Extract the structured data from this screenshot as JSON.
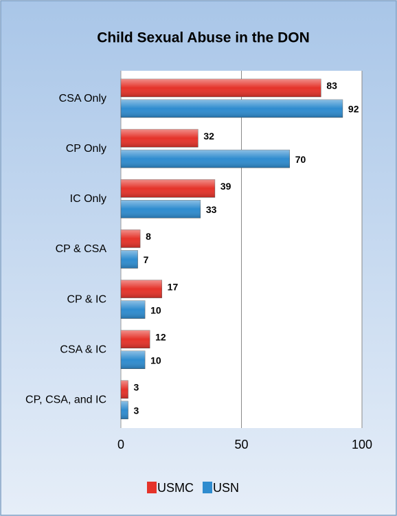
{
  "chart_data": {
    "type": "bar",
    "orientation": "horizontal",
    "title": "Child Sexual Abuse in the DON",
    "categories": [
      "CSA Only",
      "CP Only",
      "IC Only",
      "CP & CSA",
      "CP & IC",
      "CSA & IC",
      "CP, CSA, and IC"
    ],
    "series": [
      {
        "name": "USMC",
        "color": "#e5332a",
        "values": [
          83,
          32,
          39,
          8,
          17,
          12,
          3
        ]
      },
      {
        "name": "USN",
        "color": "#2f8ccf",
        "values": [
          92,
          70,
          33,
          7,
          10,
          10,
          3
        ]
      }
    ],
    "xlim": [
      0,
      100
    ],
    "xticks": [
      0,
      50,
      100
    ],
    "grid": true,
    "legend": "bottom"
  }
}
